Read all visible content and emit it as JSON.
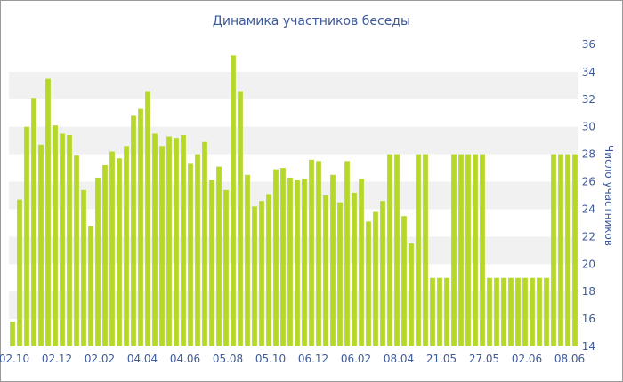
{
  "chart_data": {
    "type": "bar",
    "title": "Динамика участников беседы",
    "ylabel": "Число участников",
    "xlabel": "",
    "ylim": [
      14,
      36
    ],
    "y_ticks": [
      14,
      16,
      18,
      20,
      22,
      24,
      26,
      28,
      30,
      32,
      34,
      36
    ],
    "x_tick_labels": [
      "02.10",
      "02.12",
      "02.02",
      "04.04",
      "04.06",
      "05.08",
      "05.10",
      "06.12",
      "06.02",
      "08.04",
      "21.05",
      "27.05",
      "02.06",
      "08.06"
    ],
    "values": [
      15.8,
      24.7,
      30.0,
      32.1,
      28.7,
      33.5,
      30.1,
      29.5,
      29.4,
      27.9,
      25.4,
      22.8,
      26.3,
      27.2,
      28.2,
      27.7,
      28.6,
      30.8,
      31.3,
      32.6,
      29.5,
      28.6,
      29.3,
      29.2,
      29.4,
      27.3,
      28.0,
      28.9,
      26.1,
      27.1,
      25.4,
      35.2,
      32.6,
      26.5,
      24.2,
      24.6,
      25.1,
      26.9,
      27.0,
      26.3,
      26.1,
      26.2,
      27.6,
      27.5,
      25.0,
      26.5,
      24.5,
      27.5,
      25.2,
      26.2,
      23.1,
      23.8,
      24.6,
      28.0,
      28.0,
      23.5,
      21.5,
      28.0,
      28.0,
      19.0,
      19.0,
      19.0,
      28.0,
      28.0,
      28.0,
      28.0,
      28.0,
      19.0,
      19.0,
      19.0,
      19.0,
      19.0,
      19.0,
      19.0,
      19.0,
      19.0,
      28.0,
      28.0,
      28.0,
      28.0
    ],
    "bar_color": "#b5d82a",
    "band_color": "#f1f1f1",
    "text_color": "#3d5a99",
    "grid": false
  }
}
